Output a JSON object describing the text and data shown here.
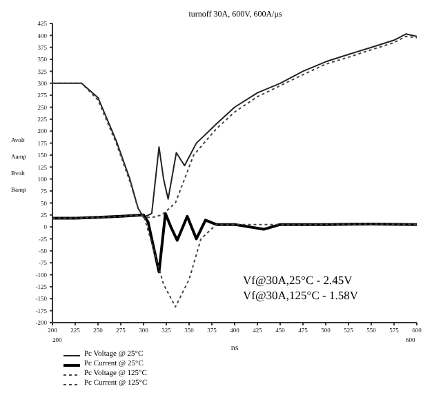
{
  "chart_data": {
    "type": "line",
    "title": "turnoff 30A, 600V, 600A/μs",
    "xlabel": "ns",
    "xlim": [
      200,
      600
    ],
    "xticks": [
      200,
      225,
      250,
      275,
      300,
      325,
      350,
      375,
      400,
      425,
      450,
      475,
      500,
      525,
      550,
      575,
      600
    ],
    "ylim": [
      -200,
      425
    ],
    "yticks": [
      -200,
      -175,
      -150,
      -125,
      -100,
      -75,
      -50,
      -25,
      0,
      25,
      50,
      75,
      100,
      125,
      150,
      175,
      200,
      225,
      250,
      275,
      300,
      325,
      350,
      375,
      400,
      425
    ],
    "legend": "bottom",
    "marker": "none",
    "annotations": [
      "Vf@30A,25°C - 2.45V",
      "Vf@30A,125°C - 1.58V",
      "Avolt",
      "Aamp",
      "Bvolt",
      "Bamp",
      "200",
      "600"
    ],
    "series": [
      {
        "name": "Pc Voltage @ 25°C",
        "color": "#222222",
        "line_style": "solid",
        "x": [
          200,
          225,
          232,
          250,
          270,
          285,
          294,
          300,
          309,
          317,
          322,
          327,
          336,
          345,
          358,
          380,
          400,
          425,
          450,
          475,
          500,
          526,
          550,
          575,
          588,
          600
        ],
        "values": [
          300,
          300,
          300,
          270,
          180,
          100,
          39,
          20,
          28,
          167,
          100,
          58,
          155,
          128,
          175,
          215,
          250,
          280,
          300,
          325,
          345,
          361,
          375,
          390,
          403,
          398
        ]
      },
      {
        "name": "Pc Current @ 25°C",
        "color": "#000000",
        "line_style": "solid",
        "x": [
          200,
          225,
          250,
          275,
          300,
          305,
          317,
          324,
          330,
          337,
          348,
          358,
          368,
          380,
          400,
          432,
          450,
          500,
          550,
          600
        ],
        "values": [
          18,
          18,
          20,
          22,
          25,
          10,
          -94,
          28,
          0,
          -28,
          22,
          -25,
          14,
          5,
          5,
          -5,
          5,
          5,
          6,
          5
        ]
      },
      {
        "name": "Pc Voltage @ 125°C",
        "color": "#444444",
        "line_style": "dotted",
        "x": [
          200,
          225,
          232,
          250,
          270,
          285,
          294,
          300,
          310,
          320,
          335,
          345,
          355,
          380,
          400,
          425,
          450,
          475,
          500,
          526,
          550,
          575,
          588,
          600
        ],
        "values": [
          300,
          300,
          300,
          265,
          175,
          95,
          39,
          20,
          20,
          25,
          50,
          100,
          150,
          205,
          240,
          272,
          295,
          318,
          340,
          355,
          370,
          385,
          398,
          395
        ]
      },
      {
        "name": "Pc Current @ 125°C",
        "color": "#444444",
        "line_style": "dotted",
        "x": [
          200,
          225,
          250,
          275,
          300,
          310,
          322,
          335,
          350,
          363,
          380,
          400,
          450,
          500,
          550,
          600
        ],
        "values": [
          18,
          18,
          20,
          22,
          25,
          -40,
          -120,
          -167,
          -110,
          -25,
          5,
          5,
          5,
          5,
          6,
          5
        ]
      }
    ]
  }
}
